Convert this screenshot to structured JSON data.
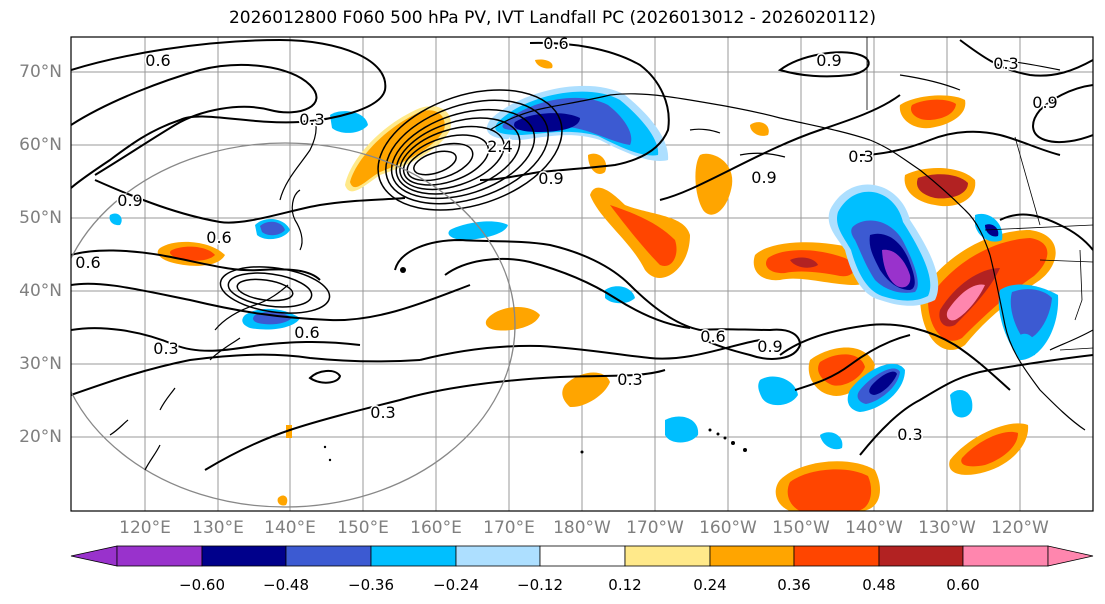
{
  "title": "2026012800 F060 500 hPa PV, IVT Landfall PC (2026013012 - 2026020112)",
  "lat_labels": [
    "70°N",
    "60°N",
    "50°N",
    "40°N",
    "30°N",
    "20°N"
  ],
  "lon_labels": [
    "120°E",
    "130°E",
    "140°E",
    "150°E",
    "160°E",
    "170°E",
    "180°W",
    "170°W",
    "160°W",
    "150°W",
    "140°W",
    "130°W",
    "120°W"
  ],
  "colorbar": {
    "ticks": [
      "−0.60",
      "−0.48",
      "−0.36",
      "−0.24",
      "−0.12",
      "0.12",
      "0.24",
      "0.36",
      "0.48",
      "0.60"
    ],
    "colors": [
      "#9932CC",
      "#00008B",
      "#3C5AD2",
      "#00BFFF",
      "#ADDFFF",
      "#FFFFFF",
      "#FFE98A",
      "#FFA500",
      "#FF4500",
      "#B22222",
      "#FF86AE"
    ]
  },
  "contour_labels": [
    "0.6",
    "0.9",
    "0.3",
    "0.6",
    "0.9",
    "0.3",
    "2.4",
    "0.9",
    "0.9",
    "0.3",
    "0.6",
    "0.9",
    "0.6",
    "0.3",
    "0.6",
    "0.6",
    "0.9",
    "0.3",
    "0.3",
    "0.3"
  ]
}
